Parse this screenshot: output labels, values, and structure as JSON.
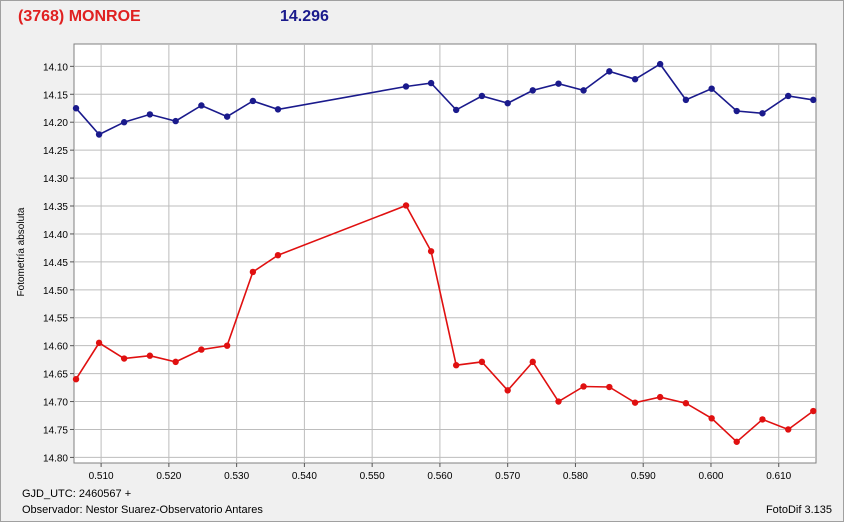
{
  "header": {
    "object_label": "(3768) MONROE",
    "magnitude_label": "14.296"
  },
  "footer": {
    "gjd": "GJD_UTC: 2460567 +",
    "observer": "Observador: Nestor Suarez-Observatorio Antares",
    "software": "FotoDif 3.135"
  },
  "colors": {
    "series_blue": "#1a1a8c",
    "series_red": "#e01010",
    "grid": "#bdbdbd",
    "plot_bg": "#ffffff",
    "title_red": "#e02020"
  },
  "chart_data": {
    "type": "line",
    "ylabel": "Fotometría absoluta",
    "xlabel": "",
    "xlim": [
      0.506,
      0.6155
    ],
    "ylim": [
      14.06,
      14.81
    ],
    "y_inverted": true,
    "grid": true,
    "xticks": [
      "0.510",
      "0.520",
      "0.530",
      "0.540",
      "0.550",
      "0.560",
      "0.570",
      "0.580",
      "0.590",
      "0.600",
      "0.610"
    ],
    "yticks": [
      "14.10",
      "14.15",
      "14.20",
      "14.25",
      "14.30",
      "14.35",
      "14.40",
      "14.45",
      "14.50",
      "14.55",
      "14.60",
      "14.65",
      "14.70",
      "14.75",
      "14.80"
    ],
    "series": [
      {
        "color": "#1a1a8c",
        "x": [
          0.5063,
          0.5097,
          0.5134,
          0.5172,
          0.521,
          0.5248,
          0.5286,
          0.5324,
          0.5361,
          0.555,
          0.5587,
          0.5624,
          0.5662,
          0.57,
          0.5737,
          0.5775,
          0.5812,
          0.585,
          0.5888,
          0.5925,
          0.5963,
          0.6001,
          0.6038,
          0.6076,
          0.6114,
          0.6151
        ],
        "y": [
          14.175,
          14.222,
          14.2,
          14.186,
          14.198,
          14.17,
          14.19,
          14.162,
          14.177,
          14.136,
          14.13,
          14.178,
          14.153,
          14.166,
          14.143,
          14.131,
          14.143,
          14.109,
          14.123,
          14.096,
          14.16,
          14.14,
          14.18,
          14.184,
          14.153,
          14.16
        ]
      },
      {
        "color": "#e01010",
        "x": [
          0.5063,
          0.5097,
          0.5134,
          0.5172,
          0.521,
          0.5248,
          0.5286,
          0.5324,
          0.5361,
          0.555,
          0.5587,
          0.5624,
          0.5662,
          0.57,
          0.5737,
          0.5775,
          0.5812,
          0.585,
          0.5888,
          0.5925,
          0.5963,
          0.6001,
          0.6038,
          0.6076,
          0.6114,
          0.6151
        ],
        "y": [
          14.66,
          14.595,
          14.623,
          14.618,
          14.629,
          14.607,
          14.6,
          14.468,
          14.438,
          14.349,
          14.431,
          14.635,
          14.629,
          14.68,
          14.629,
          14.7,
          14.673,
          14.674,
          14.702,
          14.692,
          14.703,
          14.73,
          14.772,
          14.732,
          14.75,
          14.717
        ]
      }
    ]
  }
}
